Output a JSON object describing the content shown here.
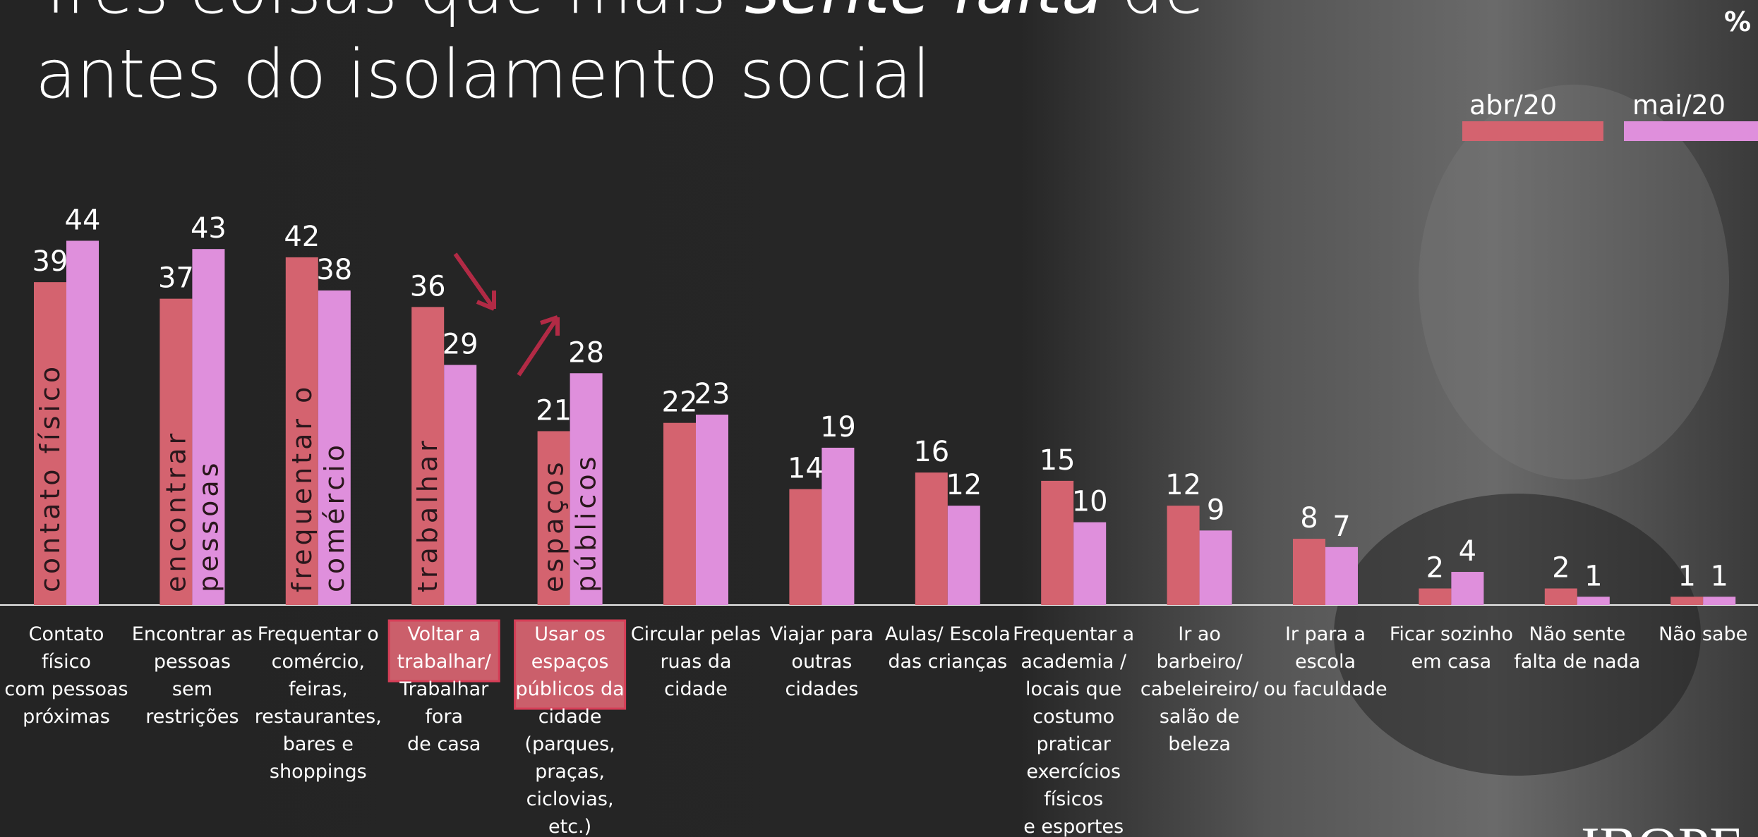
{
  "chart_data": {
    "type": "bar",
    "title": [
      "Três coisas que mais",
      "sente falta",
      "de",
      "antes do isolamento social"
    ],
    "unit": "%",
    "categories": [
      "Contato\nfísico\ncom pessoas\npróximas",
      "Encontrar as\npessoas\nsem\nrestrições",
      "Frequentar o\ncomércio,\nfeiras,\nrestaurantes,\nbares e\nshoppings",
      "Voltar a\ntrabalhar/\nTrabalhar\nfora\nde casa",
      "Usar os\nespaços\npúblicos da\ncidade\n(parques,\npraças,\nciclovias,\netc.)",
      "Circular pelas\nruas da\ncidade",
      "Viajar para\noutras\ncidades",
      "Aulas/ Escola\ndas crianças",
      "Frequentar a\nacademia /\nlocais que\ncostumo\npraticar\nexercícios\nfísicos\ne esportes",
      "Ir ao\nbarbeiro/\ncabeleireiro/\nsalão de\nbeleza",
      "Ir para a\nescola\nou faculdade",
      "Ficar sozinho\nem casa",
      "Não sente\nfalta de nada",
      "Não sabe"
    ],
    "series": [
      {
        "name": "abr/20",
        "color": "#d4636f",
        "values": [
          39,
          37,
          42,
          36,
          21,
          22,
          14,
          16,
          15,
          12,
          8,
          2,
          2,
          1
        ]
      },
      {
        "name": "mai/20",
        "color": "#df8fdc",
        "values": [
          44,
          43,
          38,
          29,
          28,
          23,
          19,
          12,
          10,
          9,
          7,
          4,
          1,
          1
        ]
      }
    ],
    "inner_labels": [
      [
        "contato físico"
      ],
      [
        "encontrar",
        "pessoas"
      ],
      [
        "frequentar o",
        "comércio"
      ],
      [
        "trabalhar"
      ],
      [
        "espaços",
        "públicos"
      ]
    ],
    "highlighted": [
      3,
      4
    ],
    "ylim": [
      0,
      50
    ],
    "logo": "IBOPE"
  }
}
